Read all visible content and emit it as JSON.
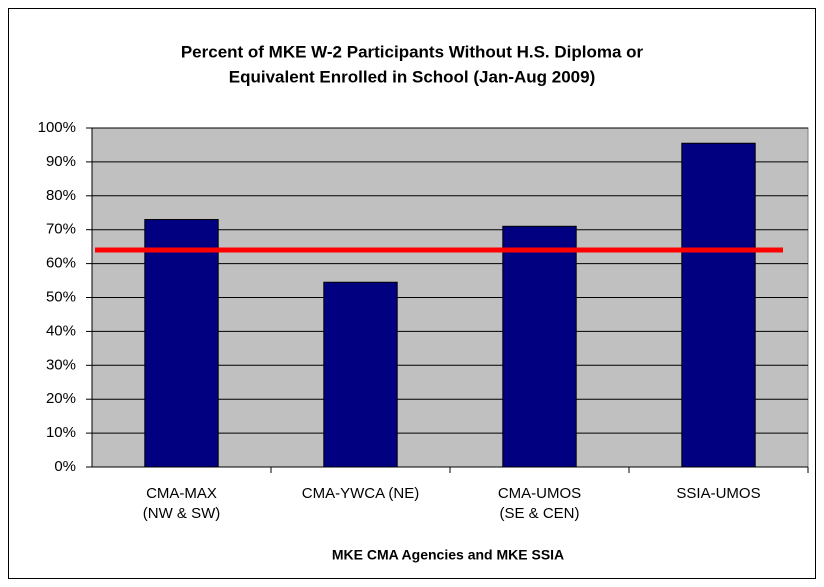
{
  "chart_data": {
    "type": "bar",
    "title": [
      "Percent of MKE W-2 Participants Without H.S. Diploma or",
      "Equivalent Enrolled in School (Jan-Aug 2009)"
    ],
    "x_label": "MKE CMA Agencies and MKE SSIA",
    "categories": [
      [
        "CMA-MAX",
        "(NW & SW)"
      ],
      [
        "CMA-YWCA (NE)"
      ],
      [
        "CMA-UMOS",
        "(SE & CEN)"
      ],
      [
        "SSIA-UMOS"
      ]
    ],
    "values": [
      73,
      54.5,
      71,
      95.5
    ],
    "color": "#000080",
    "reference_line": {
      "value": 64,
      "color": "#ff0000"
    },
    "ylim": [
      0,
      100
    ],
    "yticks": [
      {
        "value": 0,
        "label": "0%"
      },
      {
        "value": 10,
        "label": "10%"
      },
      {
        "value": 20,
        "label": "20%"
      },
      {
        "value": 30,
        "label": "30%"
      },
      {
        "value": 40,
        "label": "40%"
      },
      {
        "value": 50,
        "label": "50%"
      },
      {
        "value": 60,
        "label": "60%"
      },
      {
        "value": 70,
        "label": "70%"
      },
      {
        "value": 80,
        "label": "80%"
      },
      {
        "value": 90,
        "label": "90%"
      },
      {
        "value": 100,
        "label": "100%"
      }
    ],
    "grid": true
  }
}
